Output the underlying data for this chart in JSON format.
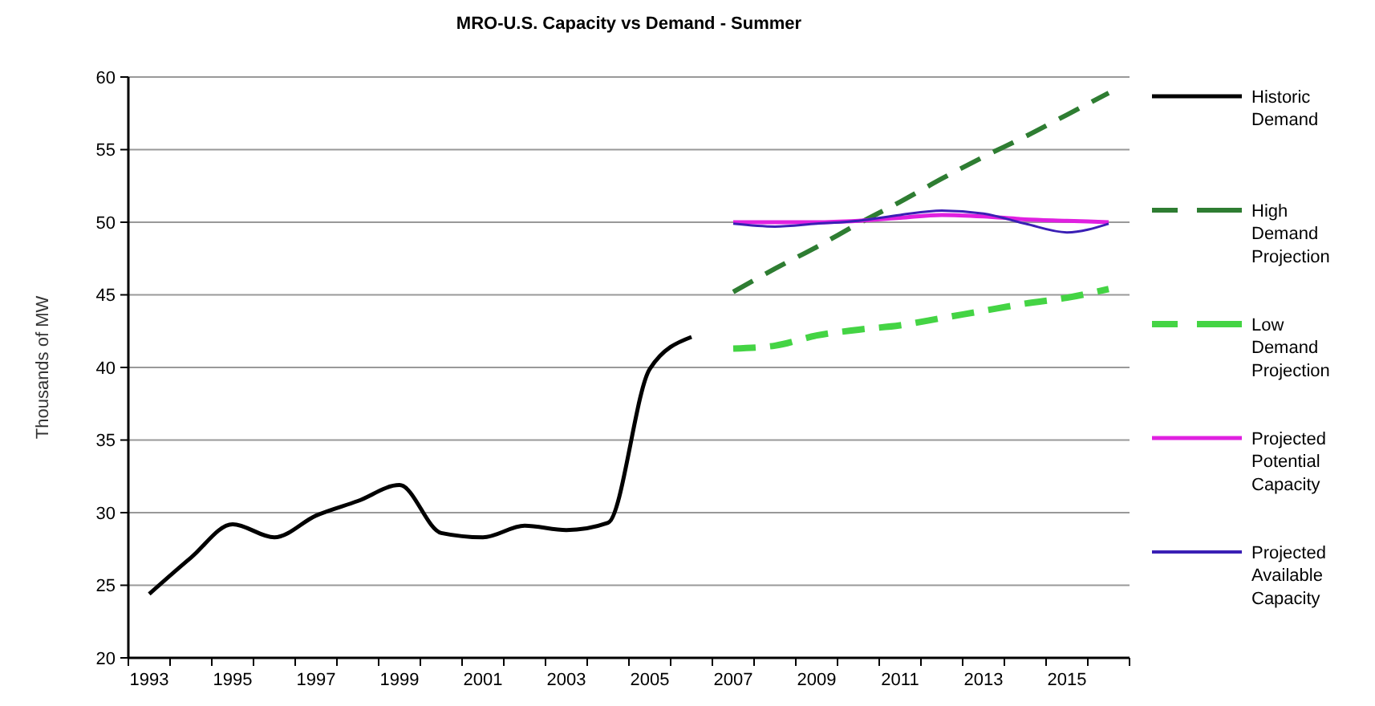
{
  "chart_data": {
    "type": "line",
    "title": "MRO-U.S. Capacity vs Demand - Summer",
    "ylabel": "Thousands of MW",
    "categories": [
      "1993",
      null,
      "1995",
      null,
      "1997",
      null,
      "1999",
      null,
      "2001",
      null,
      "2003",
      null,
      "2005",
      null,
      "2007",
      null,
      "2009",
      null,
      "2011",
      null,
      "2013",
      null,
      "2015",
      null
    ],
    "series": [
      {
        "name": "Historic Demand",
        "color": "#000000",
        "line_style": "solid",
        "values": [
          24.4,
          26.9,
          29.2,
          28.3,
          29.8,
          30.8,
          31.9,
          28.6,
          28.3,
          29.1,
          28.8,
          29.3,
          39.9,
          42.1,
          null,
          null,
          null,
          null,
          null,
          null,
          null,
          null,
          null,
          null
        ]
      },
      {
        "name": "High Demand Projection",
        "color": "#2e7d32",
        "line_style": "dashed",
        "values": [
          null,
          null,
          null,
          null,
          null,
          null,
          null,
          null,
          null,
          null,
          null,
          null,
          null,
          null,
          45.2,
          46.8,
          48.3,
          49.9,
          51.4,
          53.0,
          54.5,
          55.9,
          57.4,
          58.9
        ]
      },
      {
        "name": "Low Demand Projection",
        "color": "#44d444",
        "line_style": "dashed",
        "values": [
          null,
          null,
          null,
          null,
          null,
          null,
          null,
          null,
          null,
          null,
          null,
          null,
          null,
          null,
          41.3,
          41.5,
          42.2,
          42.6,
          42.9,
          43.4,
          43.9,
          44.4,
          44.8,
          45.4
        ]
      },
      {
        "name": "Projected Potential Capacity",
        "color": "#e020e0",
        "line_style": "solid",
        "values": [
          null,
          null,
          null,
          null,
          null,
          null,
          null,
          null,
          null,
          null,
          null,
          null,
          null,
          null,
          50.0,
          50.0,
          50.0,
          50.1,
          50.3,
          50.5,
          50.4,
          50.2,
          50.1,
          50.0
        ]
      },
      {
        "name": "Projected Available Capacity",
        "color": "#3a1fb5",
        "line_style": "solid",
        "values": [
          null,
          null,
          null,
          null,
          null,
          null,
          null,
          null,
          null,
          null,
          null,
          null,
          null,
          null,
          49.9,
          49.7,
          49.9,
          50.1,
          50.5,
          50.8,
          50.6,
          49.9,
          49.3,
          49.9
        ]
      }
    ],
    "ylim": [
      20,
      60
    ],
    "yticks": [
      20,
      25,
      30,
      35,
      40,
      45,
      50,
      55,
      60
    ],
    "grid": "y",
    "legend": "right"
  }
}
